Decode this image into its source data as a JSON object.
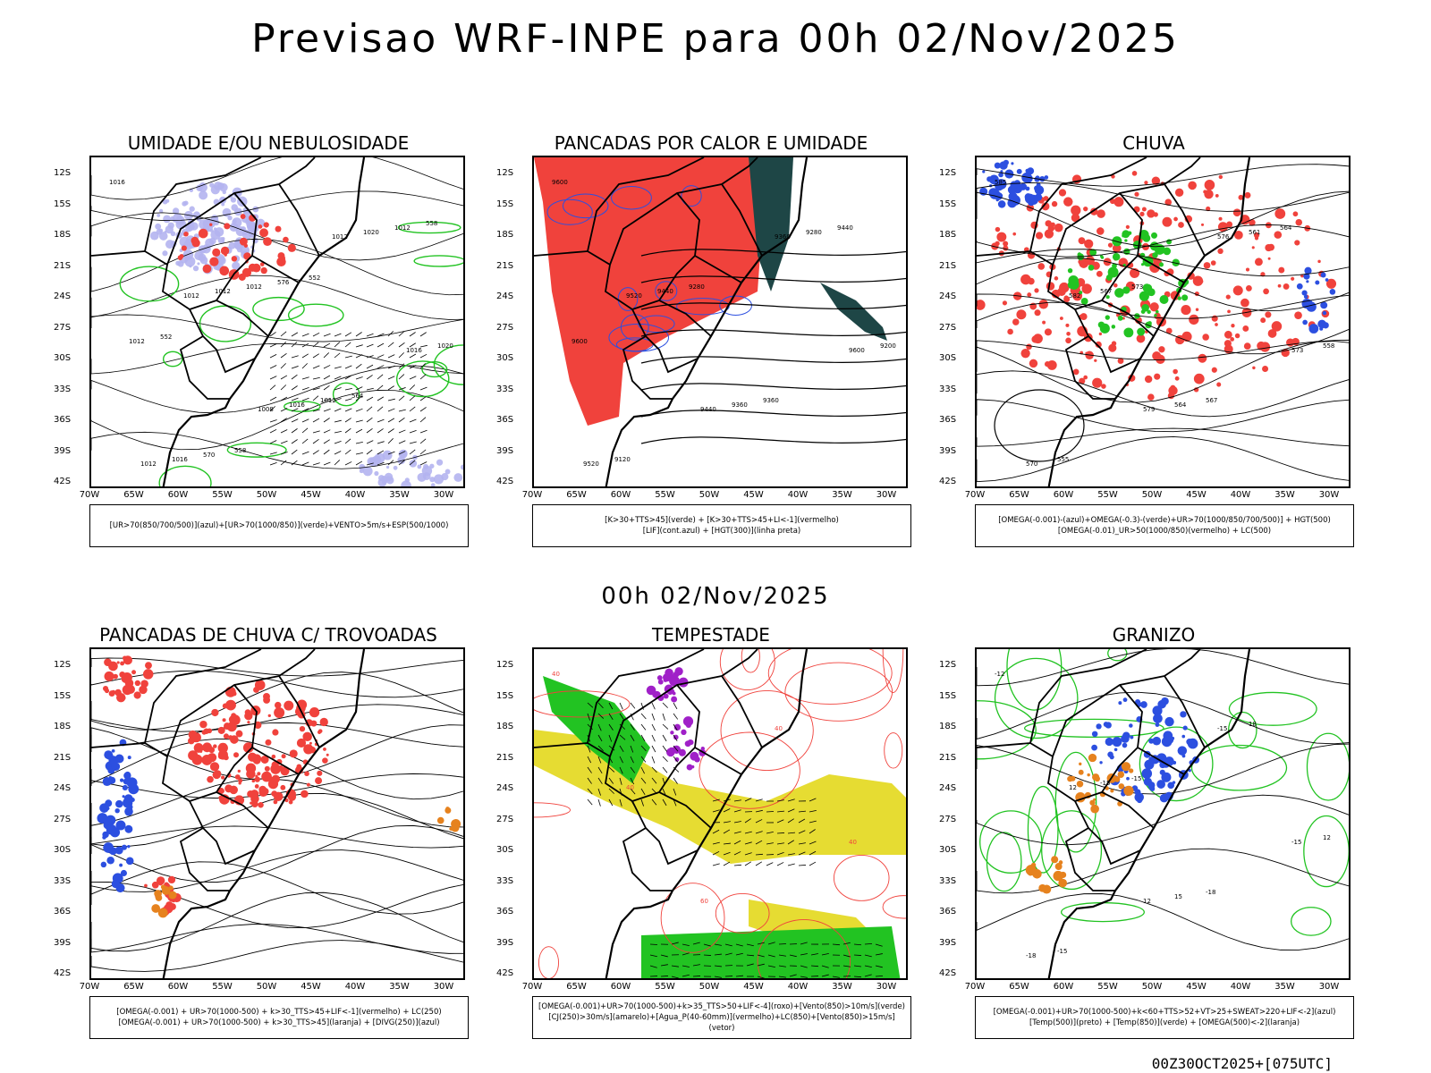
{
  "main_title": "Previsao WRF-INPE  para 00h 02/Nov/2025",
  "mid_title": "00h 02/Nov/2025",
  "footer_stamp": "00Z30OCT2025+[075UTC]",
  "lat_ticks": [
    "12S",
    "15S",
    "18S",
    "21S",
    "24S",
    "27S",
    "30S",
    "33S",
    "36S",
    "39S",
    "42S"
  ],
  "lon_ticks": [
    "70W",
    "65W",
    "60W",
    "55W",
    "50W",
    "45W",
    "40W",
    "35W",
    "30W"
  ],
  "colors": {
    "red": "#f0423c",
    "blue": "#2c4fe0",
    "green": "#22c322",
    "lavender": "#b4b4f0",
    "darkteal": "#1e4646",
    "yellow": "#e6dc32",
    "orange": "#e6821e",
    "purple": "#a020c8"
  },
  "panels": [
    {
      "title": "UMIDADE E/OU NEBULOSIDADE",
      "legend": [
        "[UR>70(850/700/500)](azul)+[UR>70(1000/850)](verde)+VENTO>5m/s+ESP(500/1000)"
      ],
      "labels": [
        "1016",
        "1012",
        "1008",
        "1012",
        "1016",
        "1012",
        "1012",
        "1016",
        "1020",
        "1020",
        "1016",
        "1012",
        "1012",
        "1012",
        "1012",
        "570",
        "576",
        "564",
        "558",
        "552",
        "558",
        "552"
      ]
    },
    {
      "title": "PANCADAS POR CALOR E UMIDADE",
      "legend": [
        "[K>30+TTS>45](verde) + [K>30+TTS>45+LI<-1](vermelho)",
        "[LIF](cont.azul) + [HGT(300)](linha preta)"
      ],
      "labels": [
        "9600",
        "9520",
        "9440",
        "9360",
        "9600",
        "9520",
        "9440",
        "9360",
        "9280",
        "9200",
        "9120",
        "9280",
        "9360",
        "9440",
        "9600"
      ]
    },
    {
      "title": "CHUVA",
      "legend": [
        "[OMEGA(-0.001)-(azul)+OMEGA(-0.3)-(verde)+UR>70(1000/850/700/500)] + HGT(500)",
        "[OMEGA(-0.01)_UR>50(1000/850)(vermelho) + LC(500)"
      ],
      "labels": [
        "585",
        "582",
        "579",
        "576",
        "573",
        "570",
        "567",
        "564",
        "561",
        "558",
        "555",
        "573",
        "567",
        "564"
      ]
    },
    {
      "title": "PANCADAS DE CHUVA C/ TROVOADAS",
      "legend": [
        "[OMEGA(-0.001) + UR>70(1000-500) + k>30_TTS>45+LIF<-1](vermelho) + LC(250)",
        "[OMEGA(-0.001) + UR>70(1000-500) + k>30_TTS>45](laranja) + [DIVG(250)](azul)"
      ],
      "labels": []
    },
    {
      "title": "TEMPESTADE",
      "legend": [
        "[OMEGA(-0.001)+UR>70(1000-500)+k>35_TTS>50+LIF<-4](roxo)+[Vento(850)>10m/s](verde)",
        "[CJ(250)>30m/s](amarelo)+[Agua_P(40-60mm)](vermelho)+LC(850)+[Vento(850)>15m/s](vetor)"
      ],
      "labels": [
        "40",
        "40",
        "60",
        "40",
        "40"
      ]
    },
    {
      "title": "GRANIZO",
      "legend": [
        "[OMEGA(-0.001)+UR>70(1000-500)+k<60+TTS>52+VT>25+SWEAT>220+LIF<-2](azul)",
        "[Temp(500)](preto) + [Temp(850)](verde) + [OMEGA(500)<-2](laranja)"
      ],
      "labels": [
        "-12",
        "12",
        "12",
        "-15",
        "-15",
        "-18",
        "-15",
        "15",
        "18",
        "12",
        "-15",
        "-15",
        "-18"
      ]
    }
  ]
}
